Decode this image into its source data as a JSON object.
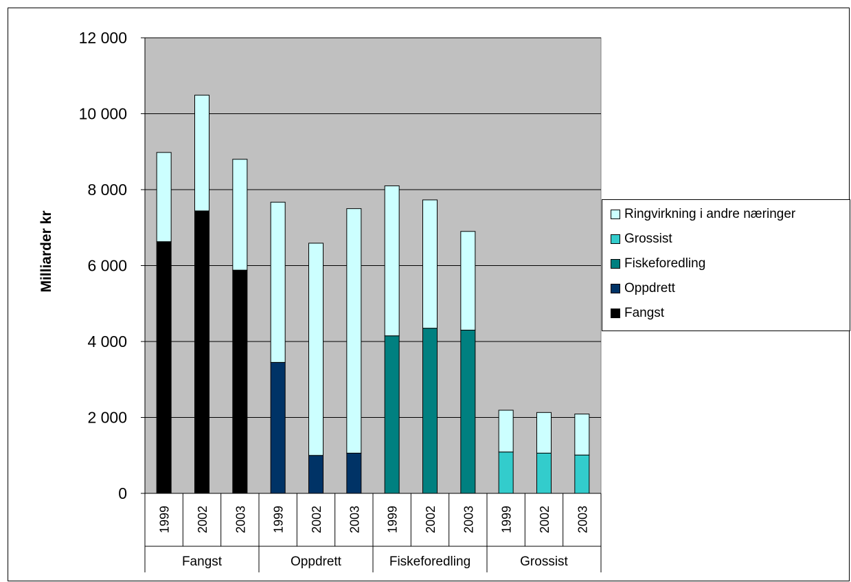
{
  "chart_data": {
    "type": "bar",
    "stacked": true,
    "ylabel": "Milliarder kr",
    "ylim": [
      0,
      12000
    ],
    "yticks": [
      0,
      2000,
      4000,
      6000,
      8000,
      10000,
      12000
    ],
    "ytick_labels": [
      "0",
      "2 000",
      "4 000",
      "6 000",
      "8 000",
      "10 000",
      "12 000"
    ],
    "groups": [
      "Fangst",
      "Oppdrett",
      "Fiskeforedling",
      "Grossist"
    ],
    "years": [
      "1999",
      "2002",
      "2003"
    ],
    "categories": [
      {
        "group": "Fangst",
        "year": "1999"
      },
      {
        "group": "Fangst",
        "year": "2002"
      },
      {
        "group": "Fangst",
        "year": "2003"
      },
      {
        "group": "Oppdrett",
        "year": "1999"
      },
      {
        "group": "Oppdrett",
        "year": "2002"
      },
      {
        "group": "Oppdrett",
        "year": "2003"
      },
      {
        "group": "Fiskeforedling",
        "year": "1999"
      },
      {
        "group": "Fiskeforedling",
        "year": "2002"
      },
      {
        "group": "Fiskeforedling",
        "year": "2003"
      },
      {
        "group": "Grossist",
        "year": "1999"
      },
      {
        "group": "Grossist",
        "year": "2002"
      },
      {
        "group": "Grossist",
        "year": "2003"
      }
    ],
    "series": [
      {
        "name": "Fangst",
        "color": "#000000",
        "values": [
          6630,
          7440,
          5880,
          0,
          0,
          0,
          0,
          0,
          0,
          0,
          0,
          0
        ]
      },
      {
        "name": "Oppdrett",
        "color": "#003366",
        "values": [
          0,
          0,
          0,
          3450,
          1000,
          1060,
          0,
          0,
          0,
          0,
          0,
          0
        ]
      },
      {
        "name": "Fiskeforedling",
        "color": "#008080",
        "values": [
          0,
          0,
          0,
          0,
          0,
          0,
          4150,
          4350,
          4300,
          0,
          0,
          0
        ]
      },
      {
        "name": "Grossist",
        "color": "#33CCCC",
        "values": [
          0,
          0,
          0,
          0,
          0,
          0,
          0,
          0,
          0,
          1090,
          1060,
          1010
        ]
      },
      {
        "name": "Ringvirkning i andre næringer",
        "color": "#CCFFFF",
        "values": [
          2350,
          3050,
          2920,
          4220,
          5590,
          6440,
          3950,
          3380,
          2600,
          1100,
          1070,
          1080
        ]
      }
    ],
    "legend_order": [
      "Ringvirkning i andre næringer",
      "Grossist",
      "Fiskeforedling",
      "Oppdrett",
      "Fangst"
    ],
    "legend_position": "right",
    "grid": true,
    "plot_background": "#C0C0C0"
  }
}
